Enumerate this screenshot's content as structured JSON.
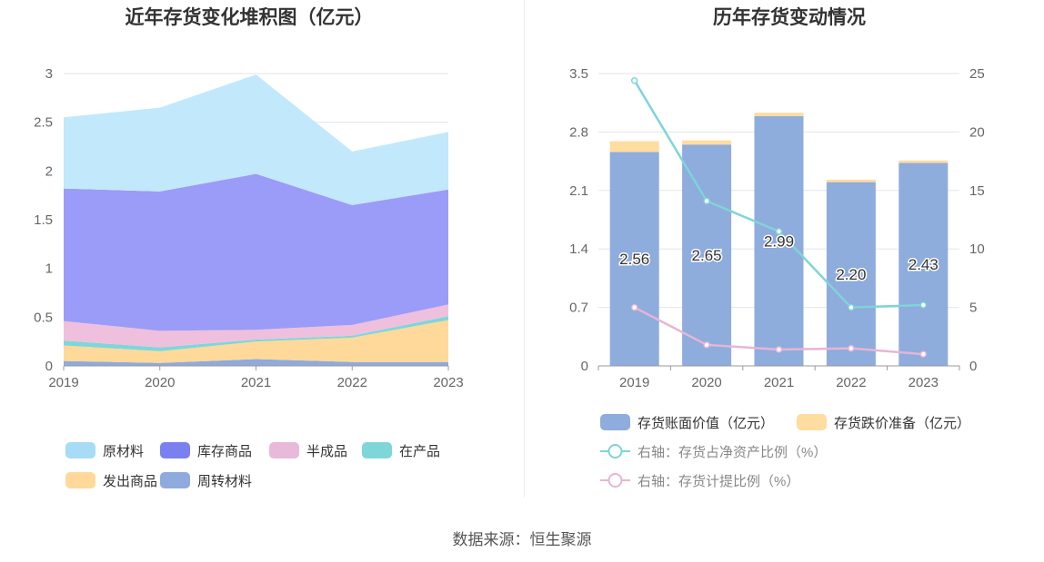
{
  "source_label": "数据来源：恒生聚源",
  "chart_data": [
    {
      "type": "area",
      "stacked": true,
      "title": "近年存货变化堆积图（亿元）",
      "categories": [
        "2019",
        "2020",
        "2021",
        "2022",
        "2023"
      ],
      "ylim": [
        0,
        3
      ],
      "yticks": [
        "0",
        "0.5",
        "1",
        "1.5",
        "2",
        "2.5",
        "3"
      ],
      "legend_position": "bottom",
      "series": [
        {
          "name": "周转材料",
          "color": "#8faadc",
          "values": [
            0.05,
            0.03,
            0.07,
            0.04,
            0.04
          ]
        },
        {
          "name": "发出商品",
          "color": "#ffd99a",
          "values": [
            0.16,
            0.12,
            0.18,
            0.25,
            0.43
          ]
        },
        {
          "name": "在产品",
          "color": "#7fd6d8",
          "values": [
            0.05,
            0.04,
            0.02,
            0.02,
            0.04
          ]
        },
        {
          "name": "半成品",
          "color": "#eec0dd",
          "values": [
            0.2,
            0.17,
            0.1,
            0.11,
            0.12
          ]
        },
        {
          "name": "库存商品",
          "color": "#9a9cf7",
          "values": [
            1.36,
            1.43,
            1.6,
            1.23,
            1.18
          ]
        },
        {
          "name": "原材料",
          "color": "#c2e8fb",
          "values": [
            0.73,
            0.86,
            1.02,
            0.55,
            0.59
          ]
        }
      ],
      "legend": [
        {
          "name": "原材料",
          "color": "#a6dcf6"
        },
        {
          "name": "库存商品",
          "color": "#7b80f0"
        },
        {
          "name": "半成品",
          "color": "#e8b9d8"
        },
        {
          "name": "在产品",
          "color": "#7fd6d8"
        },
        {
          "name": "发出商品",
          "color": "#ffd99a"
        },
        {
          "name": "周转材料",
          "color": "#8faadc"
        }
      ]
    },
    {
      "type": "bar",
      "stacked": true,
      "title": "历年存货变动情况",
      "categories": [
        "2019",
        "2020",
        "2021",
        "2022",
        "2023"
      ],
      "ylim": [
        0,
        3.5
      ],
      "yticks": [
        "0",
        "0.7",
        "1.4",
        "2.1",
        "2.8",
        "3.5"
      ],
      "y2lim": [
        0,
        25
      ],
      "y2ticks": [
        "0",
        "5",
        "10",
        "15",
        "20",
        "25"
      ],
      "legend_position": "bottom",
      "series": [
        {
          "name": "存货账面价值（亿元）",
          "type": "bar",
          "axis": "left",
          "color": "#8eacdc",
          "values": [
            2.56,
            2.65,
            2.99,
            2.2,
            2.43
          ],
          "labels": [
            "2.56",
            "2.65",
            "2.99",
            "2.20",
            "2.43"
          ]
        },
        {
          "name": "存货跌价准备（亿元）",
          "type": "bar",
          "axis": "left",
          "color": "#ffdca0",
          "values": [
            0.13,
            0.05,
            0.04,
            0.03,
            0.03
          ]
        },
        {
          "name": "右轴：存货占净资产比例（%）",
          "type": "line",
          "axis": "right",
          "color": "#7fd4d8",
          "values": [
            24.4,
            14.1,
            11.5,
            5.0,
            5.2
          ]
        },
        {
          "name": "右轴：存货计提比例（%）",
          "type": "line",
          "axis": "right",
          "color": "#e6b5d6",
          "values": [
            5.0,
            1.8,
            1.4,
            1.5,
            1.0
          ]
        }
      ]
    }
  ]
}
